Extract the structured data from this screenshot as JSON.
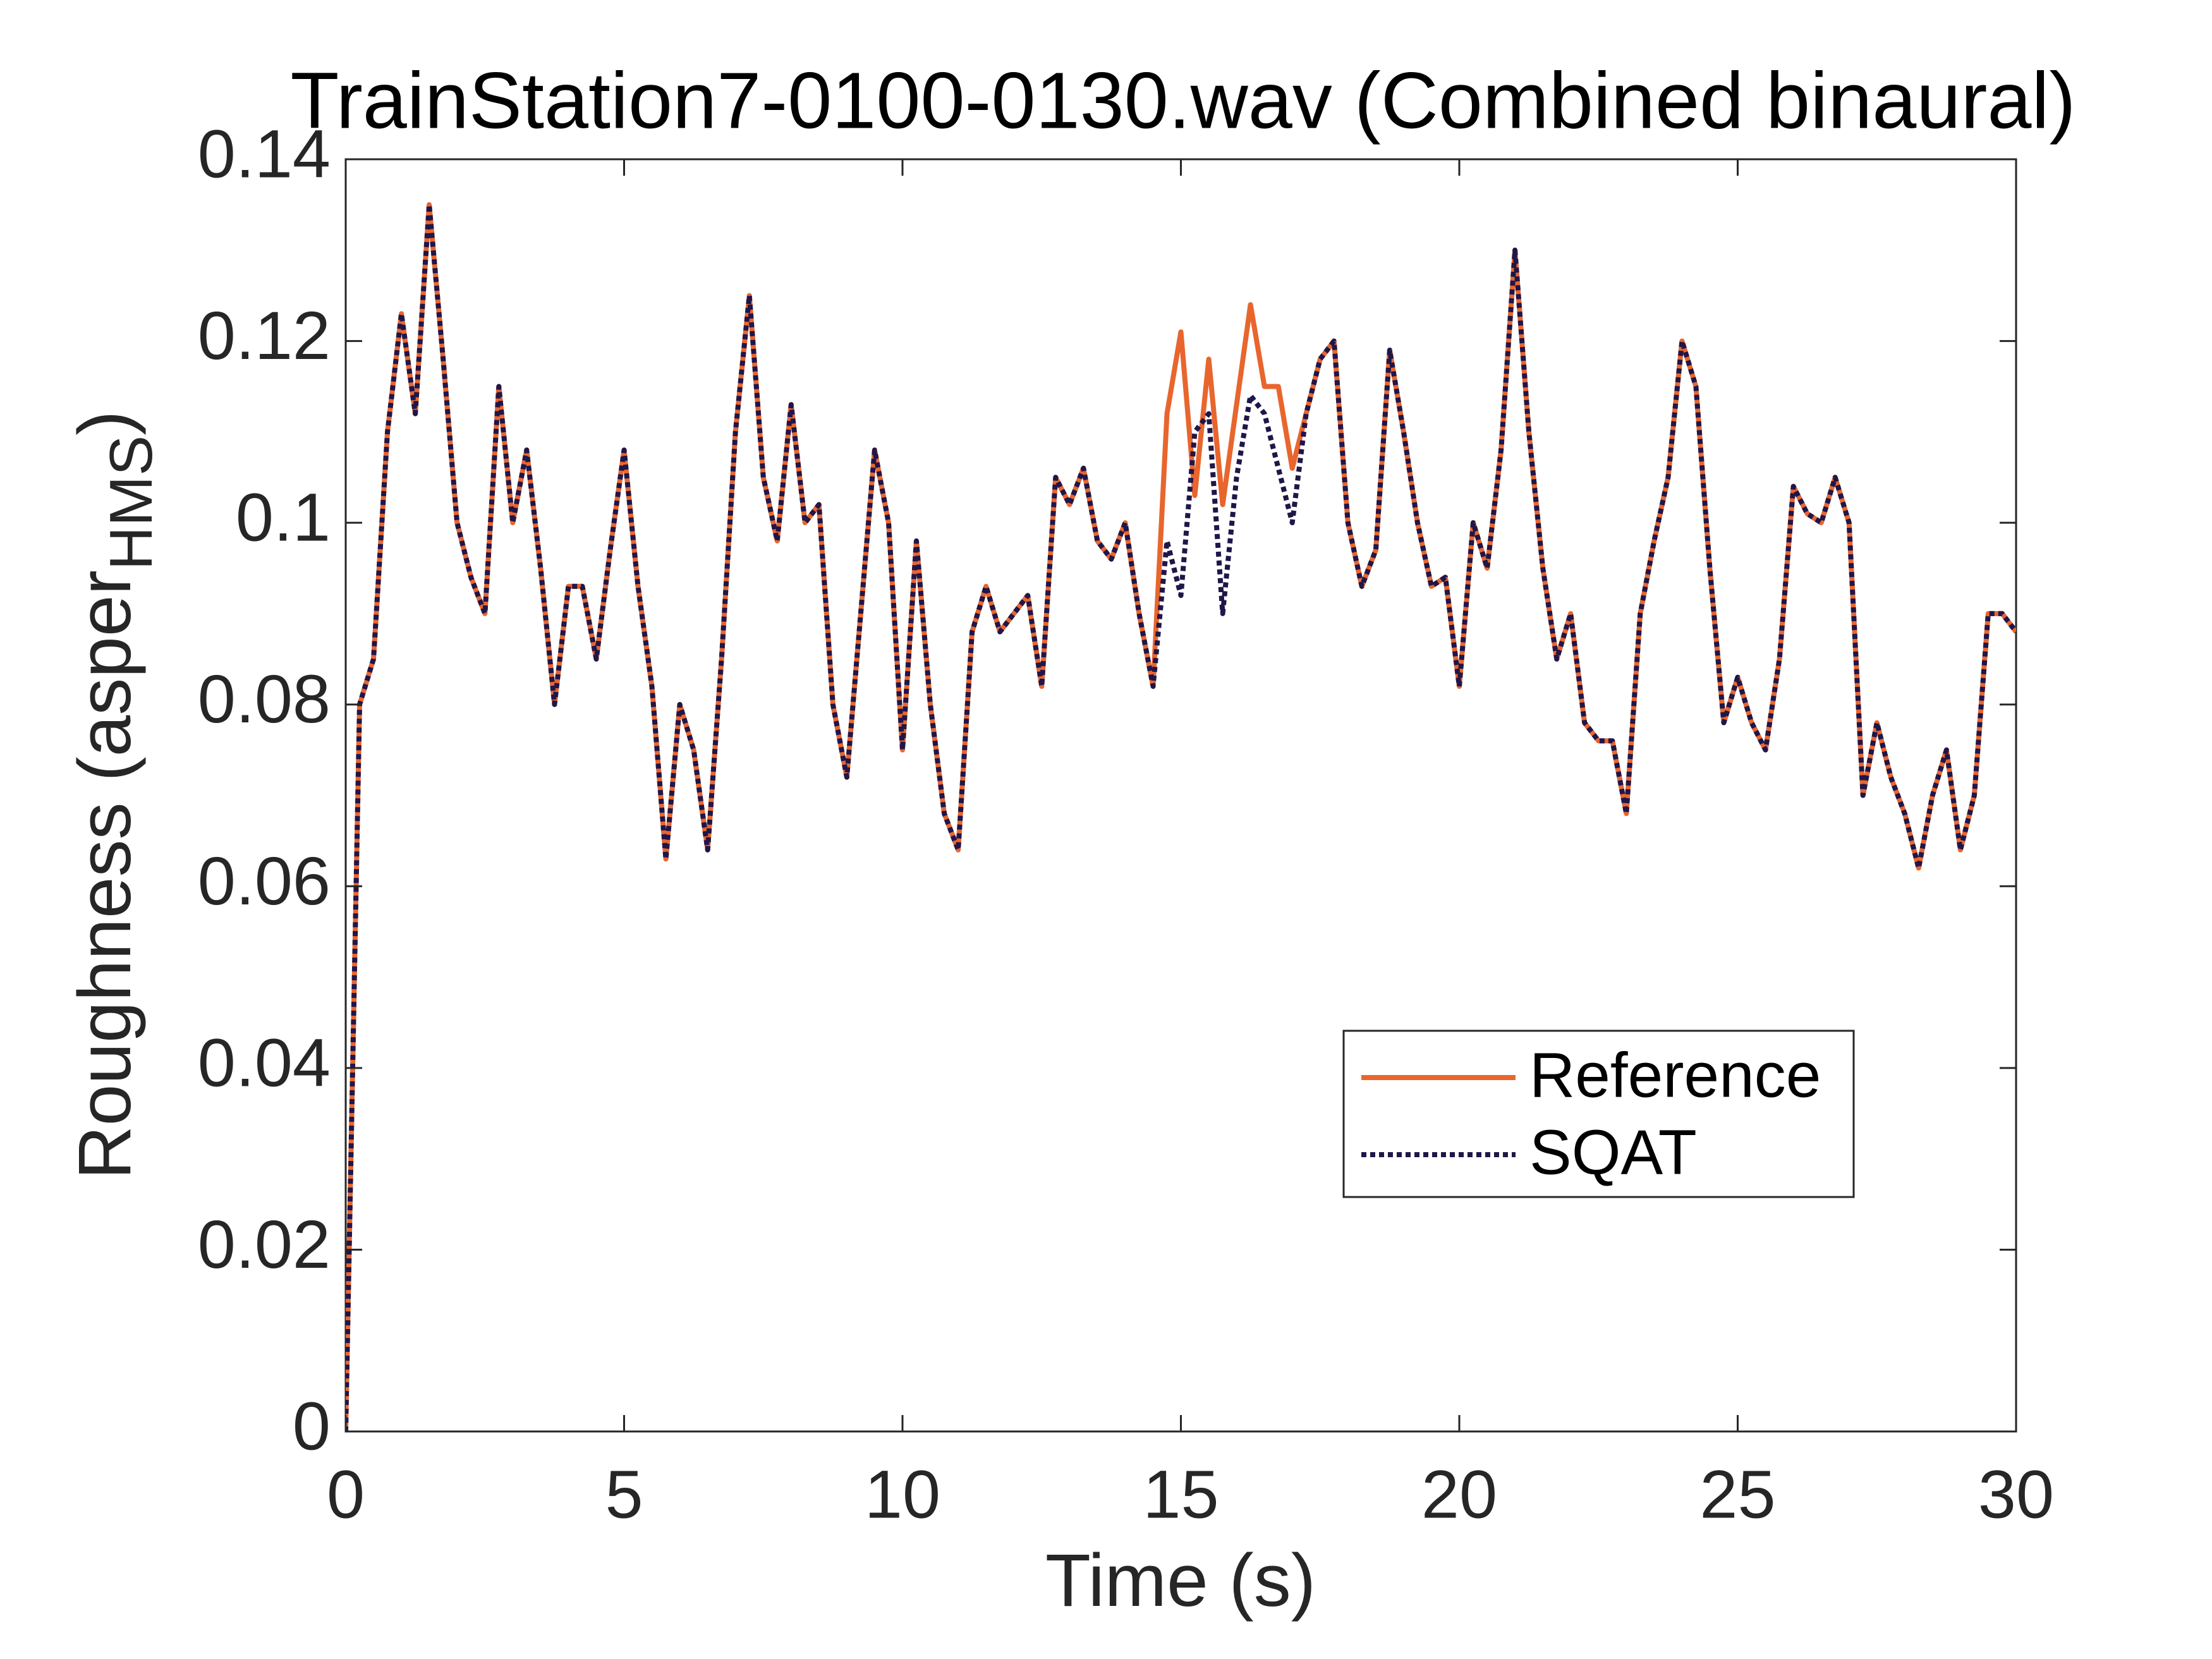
{
  "chart_data": {
    "type": "line",
    "title": "TrainStation7-0100-0130.wav (Combined binaural)",
    "xlabel": "Time (s)",
    "ylabel": {
      "text": "Roughness (asper",
      "subscript": "HMS",
      "suffix": ")"
    },
    "x": [
      0,
      0.25,
      0.5,
      0.75,
      1,
      1.25,
      1.5,
      1.75,
      2,
      2.25,
      2.5,
      2.75,
      3,
      3.25,
      3.5,
      3.75,
      4,
      4.25,
      4.5,
      4.75,
      5,
      5.25,
      5.5,
      5.75,
      6,
      6.25,
      6.5,
      6.75,
      7,
      7.25,
      7.5,
      7.75,
      8,
      8.25,
      8.5,
      8.75,
      9,
      9.25,
      9.5,
      9.75,
      10,
      10.25,
      10.5,
      10.75,
      11,
      11.25,
      11.5,
      11.75,
      12,
      12.25,
      12.5,
      12.75,
      13,
      13.25,
      13.5,
      13.75,
      14,
      14.25,
      14.5,
      14.75,
      15,
      15.25,
      15.5,
      15.75,
      16,
      16.25,
      16.5,
      16.75,
      17,
      17.25,
      17.5,
      17.75,
      18,
      18.25,
      18.5,
      18.75,
      19,
      19.25,
      19.5,
      19.75,
      20,
      20.25,
      20.5,
      20.75,
      21,
      21.25,
      21.5,
      21.75,
      22,
      22.25,
      22.5,
      22.75,
      23,
      23.25,
      23.5,
      23.75,
      24,
      24.25,
      24.5,
      24.75,
      25,
      25.25,
      25.5,
      25.75,
      26,
      26.25,
      26.5,
      26.75,
      27,
      27.25,
      27.5,
      27.75,
      28,
      28.25,
      28.5,
      28.75,
      29,
      29.25,
      29.5,
      29.75,
      30
    ],
    "series": [
      {
        "name": "Reference",
        "color": "#e8662e",
        "linestyle": "solid",
        "values": [
          0,
          0.08,
          0.085,
          0.11,
          0.123,
          0.112,
          0.135,
          0.118,
          0.1,
          0.094,
          0.09,
          0.115,
          0.1,
          0.108,
          0.095,
          0.08,
          0.093,
          0.093,
          0.085,
          0.097,
          0.108,
          0.093,
          0.082,
          0.063,
          0.08,
          0.075,
          0.064,
          0.085,
          0.11,
          0.125,
          0.105,
          0.098,
          0.113,
          0.1,
          0.102,
          0.08,
          0.072,
          0.09,
          0.108,
          0.1,
          0.075,
          0.098,
          0.08,
          0.068,
          0.064,
          0.088,
          0.093,
          0.088,
          0.09,
          0.092,
          0.082,
          0.105,
          0.102,
          0.106,
          0.098,
          0.096,
          0.1,
          0.09,
          0.082,
          0.112,
          0.121,
          0.103,
          0.118,
          0.102,
          0.113,
          0.124,
          0.115,
          0.115,
          0.106,
          0.112,
          0.118,
          0.12,
          0.1,
          0.093,
          0.097,
          0.119,
          0.11,
          0.1,
          0.093,
          0.094,
          0.082,
          0.1,
          0.095,
          0.108,
          0.13,
          0.11,
          0.095,
          0.085,
          0.09,
          0.078,
          0.076,
          0.076,
          0.068,
          0.09,
          0.098,
          0.105,
          0.12,
          0.115,
          0.095,
          0.078,
          0.083,
          0.078,
          0.075,
          0.085,
          0.104,
          0.101,
          0.1,
          0.105,
          0.1,
          0.07,
          0.078,
          0.072,
          0.068,
          0.062,
          0.07,
          0.075,
          0.064,
          0.07,
          0.09,
          0.09,
          0.088
        ]
      },
      {
        "name": "SQAT",
        "color": "#201649",
        "linestyle": "dotted",
        "values": [
          0,
          0.08,
          0.085,
          0.11,
          0.123,
          0.112,
          0.135,
          0.118,
          0.1,
          0.094,
          0.09,
          0.115,
          0.1,
          0.108,
          0.095,
          0.08,
          0.093,
          0.093,
          0.085,
          0.097,
          0.108,
          0.093,
          0.082,
          0.063,
          0.08,
          0.075,
          0.064,
          0.085,
          0.11,
          0.125,
          0.105,
          0.098,
          0.113,
          0.1,
          0.102,
          0.08,
          0.072,
          0.09,
          0.108,
          0.1,
          0.075,
          0.098,
          0.08,
          0.068,
          0.064,
          0.088,
          0.093,
          0.088,
          0.09,
          0.092,
          0.082,
          0.105,
          0.102,
          0.106,
          0.098,
          0.096,
          0.1,
          0.09,
          0.082,
          0.098,
          0.092,
          0.11,
          0.112,
          0.09,
          0.105,
          0.114,
          0.112,
          0.106,
          0.1,
          0.112,
          0.118,
          0.12,
          0.1,
          0.093,
          0.097,
          0.119,
          0.11,
          0.1,
          0.093,
          0.094,
          0.082,
          0.1,
          0.095,
          0.108,
          0.13,
          0.11,
          0.095,
          0.085,
          0.09,
          0.078,
          0.076,
          0.076,
          0.068,
          0.09,
          0.098,
          0.105,
          0.12,
          0.115,
          0.095,
          0.078,
          0.083,
          0.078,
          0.075,
          0.085,
          0.104,
          0.101,
          0.1,
          0.105,
          0.1,
          0.07,
          0.078,
          0.072,
          0.068,
          0.062,
          0.07,
          0.075,
          0.064,
          0.07,
          0.09,
          0.09,
          0.088
        ]
      }
    ],
    "xlim": [
      0,
      30
    ],
    "xticks": [
      0,
      5,
      10,
      15,
      20,
      25,
      30
    ],
    "ylim": [
      0,
      0.14
    ],
    "yticks": [
      0,
      0.02,
      0.04,
      0.06,
      0.08,
      0.1,
      0.12,
      0.14
    ],
    "grid": false,
    "legend": "east"
  }
}
